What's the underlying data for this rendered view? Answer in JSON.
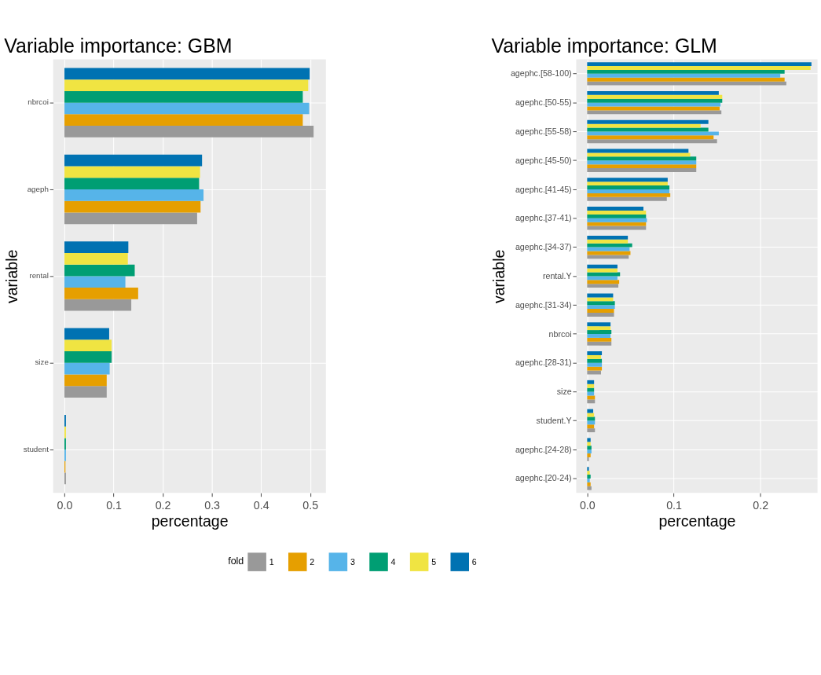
{
  "chart_data": [
    {
      "type": "bar",
      "orientation": "horizontal",
      "title": "Variable importance: GBM",
      "xlabel": "percentage",
      "ylabel": "variable",
      "legend_title": "fold",
      "legend": "bottom",
      "grid": true,
      "categories": [
        "nbrcoi",
        "ageph",
        "rental",
        "size",
        "student"
      ],
      "xlim": [
        -0.023,
        0.532
      ],
      "xticks": [
        {
          "value": 0,
          "label": "0.0"
        },
        0.1,
        0.2,
        0.3,
        0.4,
        0.5
      ],
      "series": [
        {
          "name": "1",
          "color": "#999999",
          "values": [
            0.507,
            0.27,
            0.136,
            0.086,
            0.003
          ]
        },
        {
          "name": "2",
          "color": "#e69f00",
          "values": [
            0.485,
            0.277,
            0.15,
            0.086,
            0.002
          ]
        },
        {
          "name": "3",
          "color": "#56b4e9",
          "values": [
            0.498,
            0.283,
            0.124,
            0.092,
            0.003
          ]
        },
        {
          "name": "4",
          "color": "#009e73",
          "values": [
            0.485,
            0.274,
            0.143,
            0.096,
            0.003
          ]
        },
        {
          "name": "5",
          "color": "#f0e442",
          "values": [
            0.496,
            0.276,
            0.129,
            0.096,
            0.003
          ]
        },
        {
          "name": "6",
          "color": "#0072b2",
          "values": [
            0.499,
            0.28,
            0.13,
            0.091,
            0.003
          ]
        }
      ]
    },
    {
      "type": "bar",
      "orientation": "horizontal",
      "title": "Variable importance: GLM",
      "xlabel": "percentage",
      "ylabel": "variable",
      "grid": true,
      "categories": [
        "agephc.[58-100)",
        "agephc.[50-55)",
        "agephc.[55-58)",
        "agephc.[45-50)",
        "agephc.[41-45)",
        "agephc.[37-41)",
        "agephc.[34-37)",
        "rental.Y",
        "agephc.[31-34)",
        "nbrcoi",
        "agephc.[28-31)",
        "size",
        "student.Y",
        "agephc.[24-28)",
        "agephc.[20-24)"
      ],
      "xlim": [
        -0.0126,
        0.266
      ],
      "xticks": [
        {
          "value": 0,
          "label": "0.0"
        },
        0.1,
        0.2
      ],
      "series": [
        {
          "color": "#999999",
          "values": [
            0.23,
            0.155,
            0.15,
            0.126,
            0.092,
            0.068,
            0.048,
            0.036,
            0.031,
            0.028,
            0.016,
            0.009,
            0.009,
            0.002,
            0.005
          ]
        },
        {
          "color": "#e69f00",
          "values": [
            0.228,
            0.153,
            0.146,
            0.126,
            0.096,
            0.068,
            0.05,
            0.037,
            0.031,
            0.028,
            0.017,
            0.009,
            0.008,
            0.004,
            0.004
          ]
        },
        {
          "color": "#56b4e9",
          "values": [
            0.223,
            0.154,
            0.152,
            0.126,
            0.095,
            0.069,
            0.049,
            0.035,
            0.032,
            0.027,
            0.017,
            0.008,
            0.009,
            0.005,
            0.003
          ]
        },
        {
          "color": "#009e73",
          "values": [
            0.228,
            0.156,
            0.14,
            0.126,
            0.095,
            0.068,
            0.052,
            0.038,
            0.032,
            0.028,
            0.017,
            0.008,
            0.009,
            0.005,
            0.004
          ]
        },
        {
          "color": "#f0e442",
          "values": [
            0.258,
            0.156,
            0.131,
            0.119,
            0.093,
            0.068,
            0.047,
            0.035,
            0.03,
            0.027,
            0.016,
            0.008,
            0.008,
            0.004,
            0.003
          ]
        },
        {
          "color": "#0072b2",
          "values": [
            0.259,
            0.152,
            0.14,
            0.117,
            0.093,
            0.065,
            0.047,
            0.035,
            0.03,
            0.027,
            0.017,
            0.008,
            0.007,
            0.004,
            0.002
          ]
        }
      ]
    }
  ]
}
